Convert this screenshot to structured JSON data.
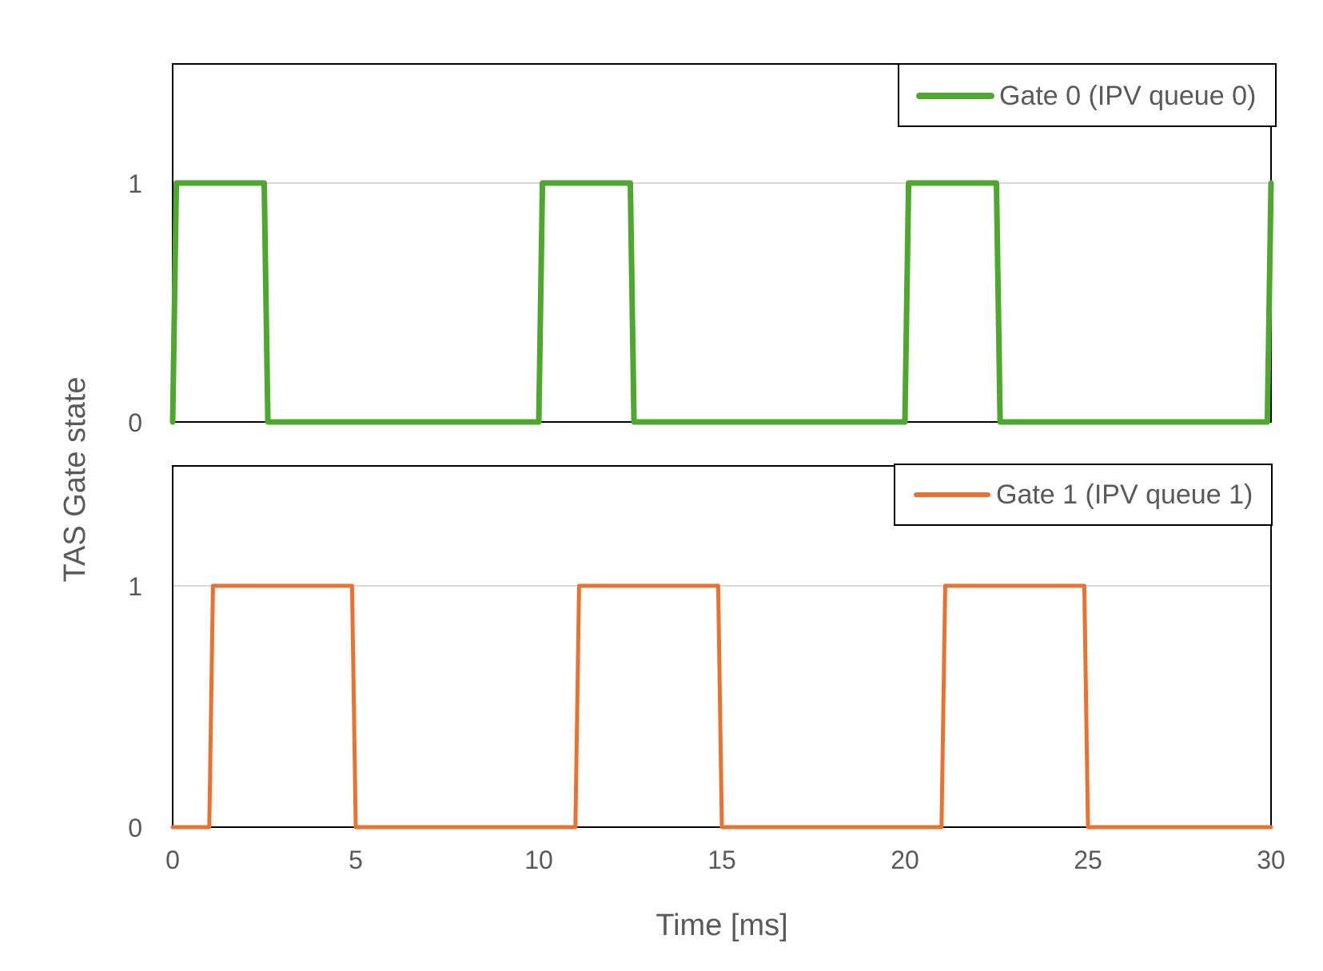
{
  "colors": {
    "gate0": "#4EA72E",
    "gate1": "#E97132",
    "grid": "#D9D9D9",
    "frame": "#000000",
    "text": "#595959"
  },
  "shared": {
    "ylabel": "TAS Gate state",
    "xlabel": "Time [ms]",
    "xlim": [
      0,
      30
    ],
    "xticks": [
      "0",
      "5",
      "10",
      "15",
      "20",
      "25",
      "30"
    ]
  },
  "chart_data": [
    {
      "type": "line",
      "title": "",
      "xlabel": "Time [ms]",
      "ylabel": "TAS Gate state",
      "xlim": [
        0,
        30
      ],
      "ylim": [
        0,
        1.5
      ],
      "yticks": [
        "0",
        "1"
      ],
      "grid": true,
      "legend": "top-right",
      "series": [
        {
          "name": "Gate 0 (IPV queue 0)",
          "color": "#4EA72E",
          "x": [
            0,
            0.1,
            2.5,
            2.6,
            10.0,
            10.1,
            12.5,
            12.6,
            20.0,
            20.1,
            22.5,
            22.6,
            29.9,
            30.0
          ],
          "y": [
            0,
            1,
            1,
            0,
            0,
            1,
            1,
            0,
            0,
            1,
            1,
            0,
            0,
            1
          ]
        }
      ]
    },
    {
      "type": "line",
      "title": "",
      "xlabel": "Time [ms]",
      "ylabel": "TAS Gate state",
      "xlim": [
        0,
        30
      ],
      "ylim": [
        0,
        1.5
      ],
      "yticks": [
        "0",
        "1"
      ],
      "grid": true,
      "legend": "top-right",
      "series": [
        {
          "name": "Gate 1 (IPV queue 1)",
          "color": "#E97132",
          "x": [
            0,
            1.0,
            1.1,
            4.9,
            5.0,
            11.0,
            11.1,
            14.9,
            15.0,
            21.0,
            21.1,
            24.9,
            25.0,
            30.0
          ],
          "y": [
            0,
            0,
            1,
            1,
            0,
            0,
            1,
            1,
            0,
            0,
            1,
            1,
            0,
            0
          ]
        }
      ]
    }
  ]
}
